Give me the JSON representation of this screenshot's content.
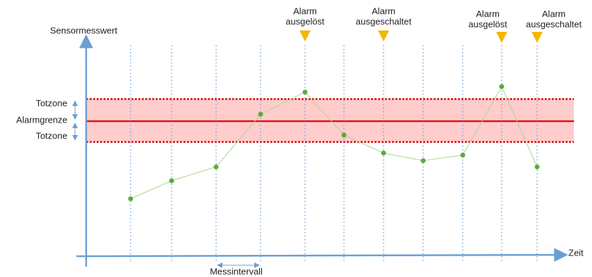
{
  "y_axis_label": "Sensormesswert",
  "x_axis_label": "Zeit",
  "interval_label": "Messintervall",
  "dead_zone_labels": [
    "Totzone",
    "Totzone"
  ],
  "alarm_limit_label": "Alarmgrenze",
  "events": [
    {
      "line1": "Alarm",
      "line2": "ausgelöst"
    },
    {
      "line1": "Alarm",
      "line2": "ausgeschaltet"
    },
    {
      "line1": "Alarm",
      "line2": "ausgelöst"
    },
    {
      "line1": "Alarm",
      "line2": "ausgeschaltet"
    }
  ]
}
